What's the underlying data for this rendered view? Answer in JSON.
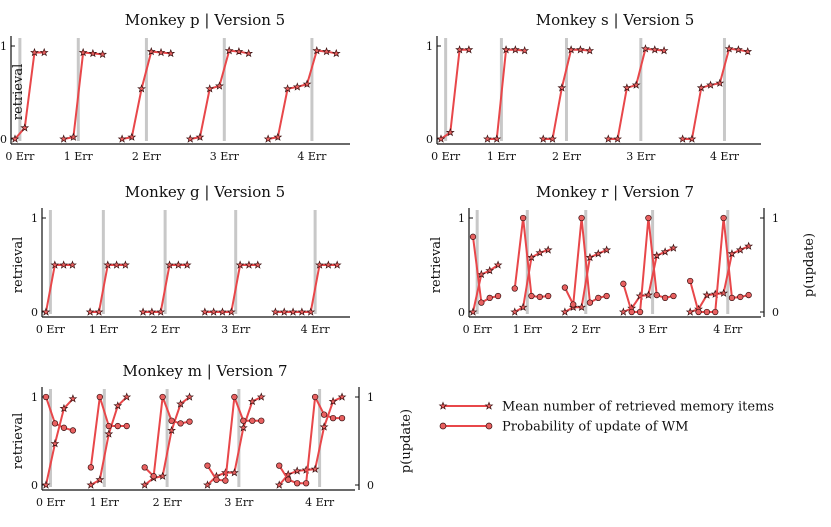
{
  "chart_data": [
    {
      "type": "line",
      "title": "Monkey p | Version 5",
      "ylabel": "retrieval",
      "ylim": [
        0,
        1
      ],
      "yticks": [
        "0",
        "1"
      ],
      "xtick_labels": [
        "0 Err",
        "1 Err",
        "2 Err",
        "3 Err",
        "4 Err"
      ],
      "error_groups": [
        {
          "errors": 0,
          "retrieval": [
            0.0,
            0.12,
            0.93,
            0.93
          ]
        },
        {
          "errors": 1,
          "retrieval": [
            0.0,
            0.02,
            0.93,
            0.92,
            0.91
          ]
        },
        {
          "errors": 2,
          "retrieval": [
            0.0,
            0.02,
            0.54,
            0.94,
            0.93,
            0.92
          ]
        },
        {
          "errors": 3,
          "retrieval": [
            0.0,
            0.02,
            0.54,
            0.57,
            0.95,
            0.94,
            0.92
          ]
        },
        {
          "errors": 4,
          "retrieval": [
            0.0,
            0.02,
            0.54,
            0.56,
            0.59,
            0.95,
            0.94,
            0.92
          ]
        }
      ]
    },
    {
      "type": "line",
      "title": "Monkey s | Version 5",
      "ylabel": "",
      "ylim": [
        0,
        1
      ],
      "yticks": [
        "0",
        "1"
      ],
      "xtick_labels": [
        "0 Err",
        "1 Err",
        "2 Err",
        "3 Err",
        "4 Err"
      ],
      "error_groups": [
        {
          "errors": 0,
          "retrieval": [
            0.0,
            0.07,
            0.96,
            0.96
          ]
        },
        {
          "errors": 1,
          "retrieval": [
            0.0,
            0.0,
            0.96,
            0.96,
            0.95
          ]
        },
        {
          "errors": 2,
          "retrieval": [
            0.0,
            0.0,
            0.55,
            0.96,
            0.96,
            0.95
          ]
        },
        {
          "errors": 3,
          "retrieval": [
            0.0,
            0.0,
            0.55,
            0.58,
            0.97,
            0.96,
            0.95
          ]
        },
        {
          "errors": 4,
          "retrieval": [
            0.0,
            0.0,
            0.55,
            0.58,
            0.6,
            0.97,
            0.96,
            0.94
          ]
        }
      ]
    },
    {
      "type": "line",
      "title": "Monkey g | Version 5",
      "ylabel": "retrieval",
      "ylim": [
        0,
        1
      ],
      "yticks": [
        "0",
        "1"
      ],
      "xtick_labels": [
        "0 Err",
        "1 Err",
        "2 Err",
        "3 Err",
        "4 Err"
      ],
      "error_groups": [
        {
          "errors": 0,
          "retrieval": [
            0.0,
            0.5,
            0.5,
            0.5
          ]
        },
        {
          "errors": 1,
          "retrieval": [
            0.0,
            0.0,
            0.5,
            0.5,
            0.5
          ]
        },
        {
          "errors": 2,
          "retrieval": [
            0.0,
            0.0,
            0.0,
            0.5,
            0.5,
            0.5
          ]
        },
        {
          "errors": 3,
          "retrieval": [
            0.0,
            0.0,
            0.0,
            0.0,
            0.5,
            0.5,
            0.5
          ]
        },
        {
          "errors": 4,
          "retrieval": [
            0.0,
            0.0,
            0.0,
            0.0,
            0.0,
            0.5,
            0.5,
            0.5
          ]
        }
      ]
    },
    {
      "type": "line",
      "title": "Monkey r | Version 7",
      "ylabel": "retrieval",
      "ylabel_right": "p(update)",
      "ylim": [
        0,
        1
      ],
      "yticks": [
        "0",
        "1"
      ],
      "yticks_right": [
        "0",
        "1"
      ],
      "xtick_labels": [
        "0 Err",
        "1 Err",
        "2 Err",
        "3 Err",
        "4 Err"
      ],
      "error_groups": [
        {
          "errors": 0,
          "retrieval": [
            0.0,
            0.4,
            0.44,
            0.5
          ],
          "p_update": [
            0.8,
            0.1,
            0.15,
            0.17
          ]
        },
        {
          "errors": 1,
          "retrieval": [
            0.0,
            0.05,
            0.58,
            0.63,
            0.66
          ],
          "p_update": [
            0.25,
            1.0,
            0.17,
            0.16,
            0.17
          ]
        },
        {
          "errors": 2,
          "retrieval": [
            0.0,
            0.05,
            0.05,
            0.58,
            0.62,
            0.66
          ],
          "p_update": [
            0.26,
            0.08,
            1.0,
            0.1,
            0.15,
            0.17
          ]
        },
        {
          "errors": 3,
          "retrieval": [
            0.0,
            0.04,
            0.17,
            0.18,
            0.6,
            0.64,
            0.68
          ],
          "p_update": [
            0.3,
            0.0,
            0.0,
            1.0,
            0.18,
            0.15,
            0.17
          ]
        },
        {
          "errors": 4,
          "retrieval": [
            0.0,
            0.03,
            0.18,
            0.19,
            0.2,
            0.62,
            0.66,
            0.7
          ],
          "p_update": [
            0.33,
            0.0,
            0.0,
            0.0,
            1.0,
            0.15,
            0.16,
            0.18
          ]
        }
      ]
    },
    {
      "type": "line",
      "title": "Monkey m | Version 7",
      "ylabel": "retrieval",
      "ylabel_right": "p(update)",
      "ylim": [
        0,
        1
      ],
      "yticks": [
        "0",
        "1"
      ],
      "yticks_right": [
        "0",
        "1"
      ],
      "xtick_labels": [
        "0 Err",
        "1 Err",
        "2 Err",
        "3 Err",
        "4 Err"
      ],
      "error_groups": [
        {
          "errors": 0,
          "retrieval": [
            0.0,
            0.47,
            0.87,
            0.98
          ],
          "p_update": [
            1.0,
            0.7,
            0.65,
            0.62
          ]
        },
        {
          "errors": 1,
          "retrieval": [
            0.0,
            0.06,
            0.58,
            0.9,
            1.0
          ],
          "p_update": [
            0.2,
            1.0,
            0.67,
            0.67,
            0.67
          ]
        },
        {
          "errors": 2,
          "retrieval": [
            0.0,
            0.08,
            0.1,
            0.62,
            0.92,
            1.0
          ],
          "p_update": [
            0.2,
            0.1,
            1.0,
            0.73,
            0.7,
            0.72
          ]
        },
        {
          "errors": 3,
          "retrieval": [
            0.0,
            0.1,
            0.14,
            0.14,
            0.65,
            0.95,
            1.0
          ],
          "p_update": [
            0.22,
            0.06,
            0.05,
            1.0,
            0.73,
            0.73,
            0.73
          ]
        },
        {
          "errors": 4,
          "retrieval": [
            0.0,
            0.12,
            0.16,
            0.17,
            0.18,
            0.66,
            0.95,
            1.0
          ],
          "p_update": [
            0.22,
            0.06,
            0.02,
            0.02,
            1.0,
            0.8,
            0.76,
            0.76
          ]
        }
      ]
    }
  ],
  "legend": {
    "items": [
      {
        "label": "Mean number of retrieved memory items",
        "marker": "star"
      },
      {
        "label": "Probability of update of WM",
        "marker": "circle"
      }
    ]
  },
  "colors": {
    "line": "#e8474a",
    "marker_fill": "#e86060",
    "marker_edge": "#3a1010",
    "error_bar": "#c8c8c8",
    "axis": "#111111"
  }
}
